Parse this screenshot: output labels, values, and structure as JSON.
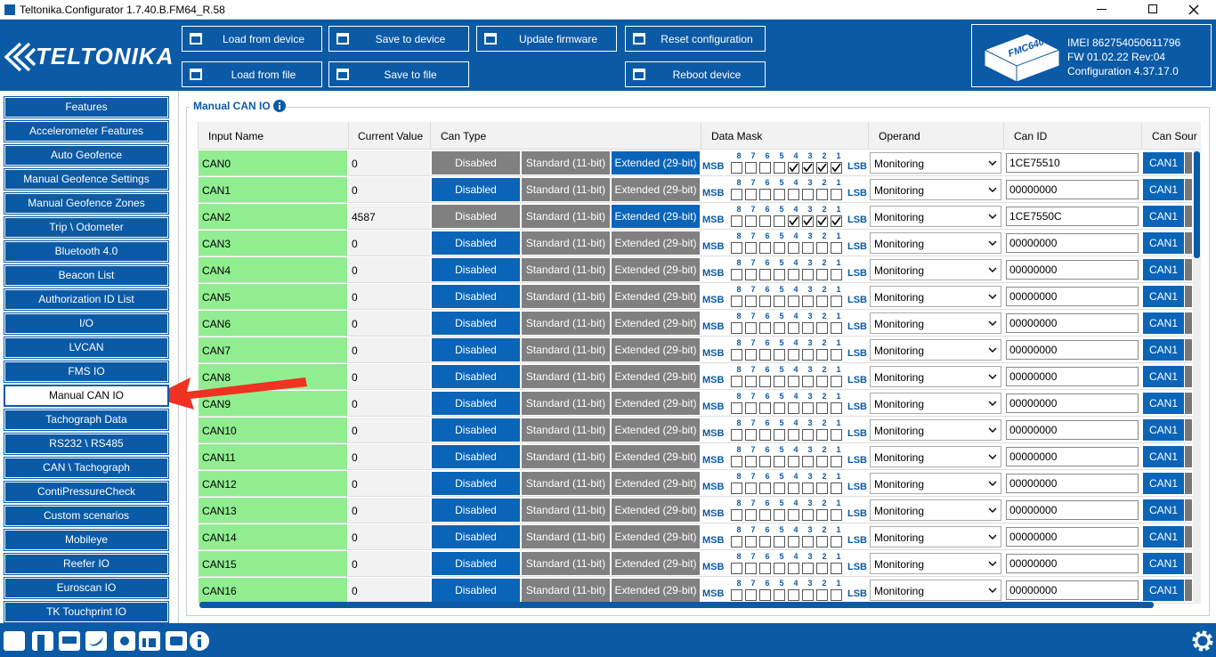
{
  "window_title": "Teltonika.Configurator 1.7.40.B.FM64_R.58",
  "logo": "TELTONIKA",
  "toolbar": [
    "Load from device",
    "Save to device",
    "Update firmware",
    "Reset configuration",
    "Load from file",
    "Save to file",
    "Reboot device"
  ],
  "device": {
    "model": "FMC640",
    "imei": "IMEI 862754050611796",
    "fw": "FW 01.02.22 Rev:04",
    "configuration": "Configuration 4.37.17.0"
  },
  "menu": {
    "items": [
      "Features",
      "Accelerometer Features",
      "Auto Geofence",
      "Manual Geofence Settings",
      "Manual Geofence Zones",
      "Trip \\ Odometer",
      "Bluetooth 4.0",
      "Beacon List",
      "Authorization ID List",
      "I/O",
      "LVCAN",
      "FMS IO",
      "Manual CAN IO",
      "Tachograph Data",
      "RS232 \\ RS485",
      "CAN \\ Tachograph",
      "ContiPressureCheck",
      "Custom scenarios",
      "Mobileye",
      "Reefer IO",
      "Euroscan IO",
      "TK Touchprint IO"
    ],
    "active": 12
  },
  "panel_title": "Manual CAN IO",
  "table": {
    "headers": [
      "Input Name",
      "Current Value",
      "Can Type",
      "Data Mask",
      "Operand",
      "Can ID",
      "Can Sour"
    ],
    "can_types": [
      "Disabled",
      "Standard (11-bit)",
      "Extended (29-bit)"
    ],
    "bits": [
      "8",
      "7",
      "6",
      "5",
      "4",
      "3",
      "2",
      "1"
    ],
    "msb": "MSB",
    "lsb": "LSB",
    "rows": [
      {
        "name": "CAN0",
        "value": "0",
        "selected_type": 2,
        "mask": [
          false,
          false,
          false,
          false,
          true,
          true,
          true,
          true
        ],
        "operand": "Monitoring",
        "can_id": "1CE75510",
        "source": "CAN1"
      },
      {
        "name": "CAN1",
        "value": "0",
        "selected_type": 0,
        "mask": [
          false,
          false,
          false,
          false,
          false,
          false,
          false,
          false
        ],
        "operand": "Monitoring",
        "can_id": "00000000",
        "source": "CAN1"
      },
      {
        "name": "CAN2",
        "value": "4587",
        "selected_type": 2,
        "mask": [
          false,
          false,
          false,
          false,
          true,
          true,
          true,
          true
        ],
        "operand": "Monitoring",
        "can_id": "1CE7550C",
        "source": "CAN1"
      },
      {
        "name": "CAN3",
        "value": "0",
        "selected_type": 0,
        "mask": [
          false,
          false,
          false,
          false,
          false,
          false,
          false,
          false
        ],
        "operand": "Monitoring",
        "can_id": "00000000",
        "source": "CAN1"
      },
      {
        "name": "CAN4",
        "value": "0",
        "selected_type": 0,
        "mask": [
          false,
          false,
          false,
          false,
          false,
          false,
          false,
          false
        ],
        "operand": "Monitoring",
        "can_id": "00000000",
        "source": "CAN1"
      },
      {
        "name": "CAN5",
        "value": "0",
        "selected_type": 0,
        "mask": [
          false,
          false,
          false,
          false,
          false,
          false,
          false,
          false
        ],
        "operand": "Monitoring",
        "can_id": "00000000",
        "source": "CAN1"
      },
      {
        "name": "CAN6",
        "value": "0",
        "selected_type": 0,
        "mask": [
          false,
          false,
          false,
          false,
          false,
          false,
          false,
          false
        ],
        "operand": "Monitoring",
        "can_id": "00000000",
        "source": "CAN1"
      },
      {
        "name": "CAN7",
        "value": "0",
        "selected_type": 0,
        "mask": [
          false,
          false,
          false,
          false,
          false,
          false,
          false,
          false
        ],
        "operand": "Monitoring",
        "can_id": "00000000",
        "source": "CAN1"
      },
      {
        "name": "CAN8",
        "value": "0",
        "selected_type": 0,
        "mask": [
          false,
          false,
          false,
          false,
          false,
          false,
          false,
          false
        ],
        "operand": "Monitoring",
        "can_id": "00000000",
        "source": "CAN1"
      },
      {
        "name": "CAN9",
        "value": "0",
        "selected_type": 0,
        "mask": [
          false,
          false,
          false,
          false,
          false,
          false,
          false,
          false
        ],
        "operand": "Monitoring",
        "can_id": "00000000",
        "source": "CAN1"
      },
      {
        "name": "CAN10",
        "value": "0",
        "selected_type": 0,
        "mask": [
          false,
          false,
          false,
          false,
          false,
          false,
          false,
          false
        ],
        "operand": "Monitoring",
        "can_id": "00000000",
        "source": "CAN1"
      },
      {
        "name": "CAN11",
        "value": "0",
        "selected_type": 0,
        "mask": [
          false,
          false,
          false,
          false,
          false,
          false,
          false,
          false
        ],
        "operand": "Monitoring",
        "can_id": "00000000",
        "source": "CAN1"
      },
      {
        "name": "CAN12",
        "value": "0",
        "selected_type": 0,
        "mask": [
          false,
          false,
          false,
          false,
          false,
          false,
          false,
          false
        ],
        "operand": "Monitoring",
        "can_id": "00000000",
        "source": "CAN1"
      },
      {
        "name": "CAN13",
        "value": "0",
        "selected_type": 0,
        "mask": [
          false,
          false,
          false,
          false,
          false,
          false,
          false,
          false
        ],
        "operand": "Monitoring",
        "can_id": "00000000",
        "source": "CAN1"
      },
      {
        "name": "CAN14",
        "value": "0",
        "selected_type": 0,
        "mask": [
          false,
          false,
          false,
          false,
          false,
          false,
          false,
          false
        ],
        "operand": "Monitoring",
        "can_id": "00000000",
        "source": "CAN1"
      },
      {
        "name": "CAN15",
        "value": "0",
        "selected_type": 0,
        "mask": [
          false,
          false,
          false,
          false,
          false,
          false,
          false,
          false
        ],
        "operand": "Monitoring",
        "can_id": "00000000",
        "source": "CAN1"
      },
      {
        "name": "CAN16",
        "value": "0",
        "selected_type": 0,
        "mask": [
          false,
          false,
          false,
          false,
          false,
          false,
          false,
          false
        ],
        "operand": "Monitoring",
        "can_id": "00000000",
        "source": "CAN1"
      }
    ]
  }
}
